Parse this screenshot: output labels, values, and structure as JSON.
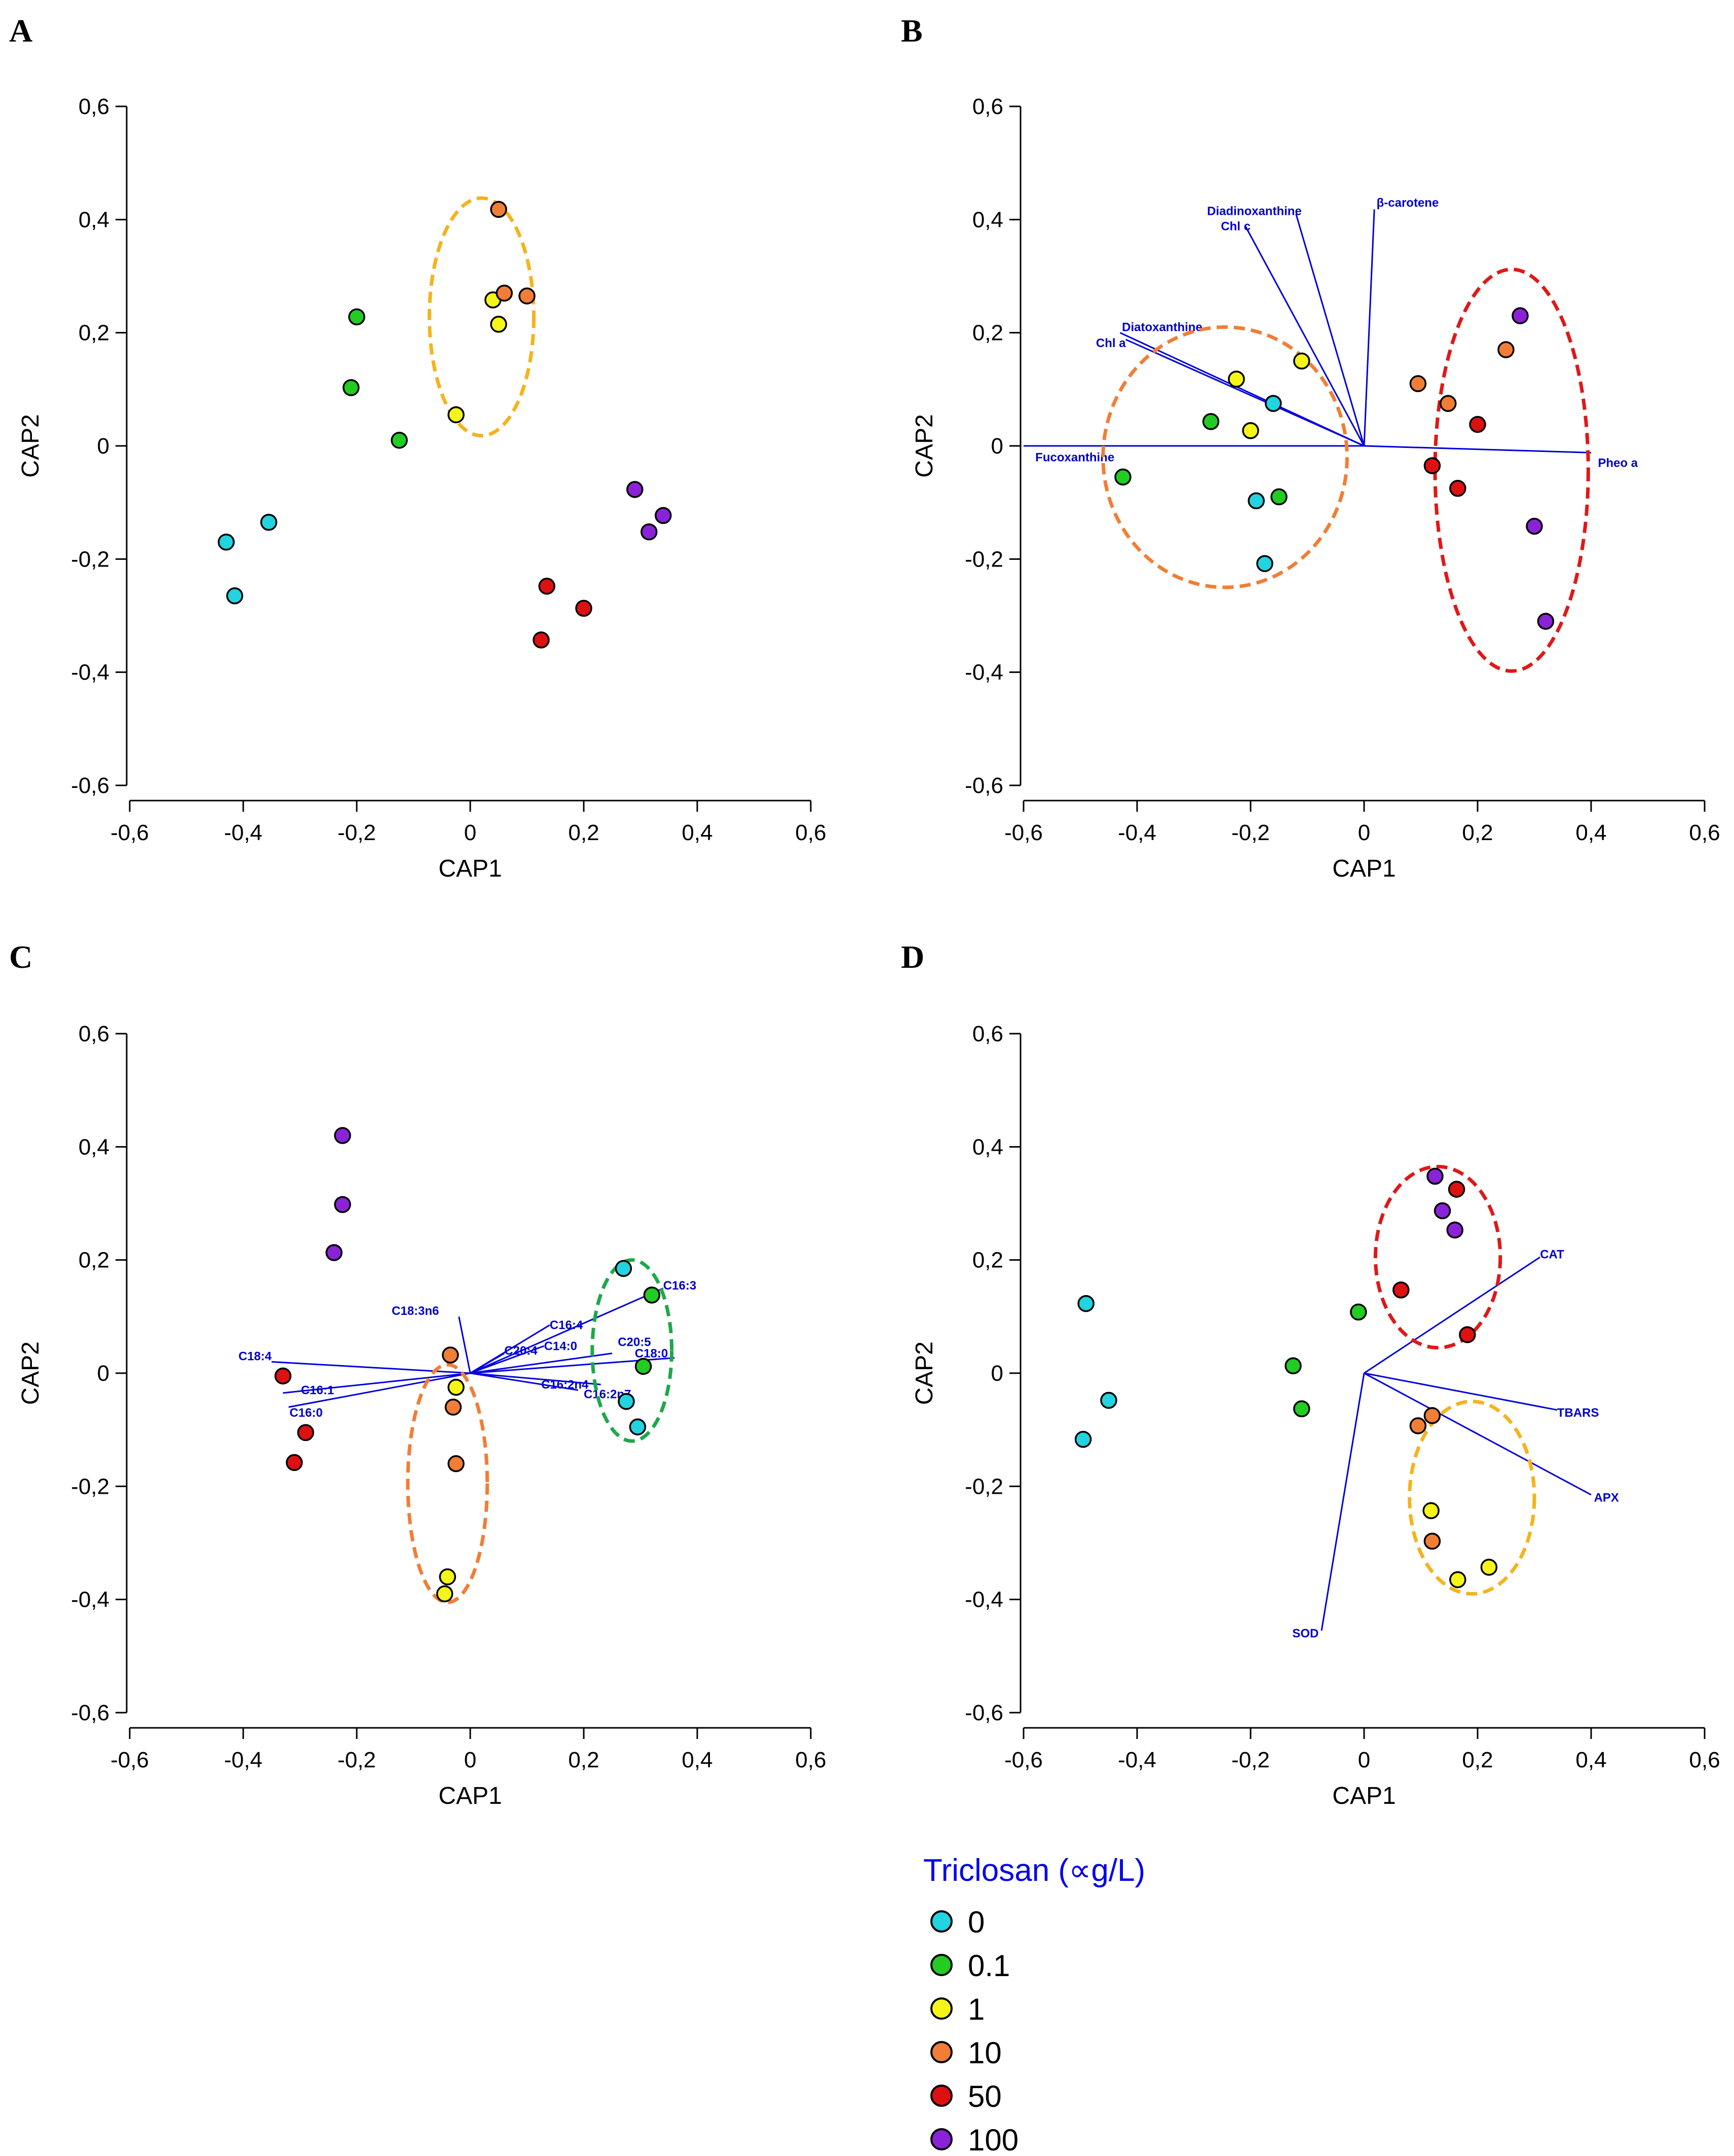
{
  "colors": {
    "t0": "#22d3e0",
    "t0_1": "#22cc22",
    "t1": "#f5f518",
    "t10": "#f07e36",
    "t50": "#dd1111",
    "t100": "#8a22d8",
    "vector": "#0000dd",
    "ellipse_orange": "#f07e36",
    "ellipse_gold": "#f5b31b",
    "ellipse_red": "#e01818",
    "ellipse_green": "#1ea84a"
  },
  "legend": {
    "title": "Triclosan (∝g/L)",
    "items": [
      {
        "label": "0",
        "color_key": "t0"
      },
      {
        "label": "0.1",
        "color_key": "t0_1"
      },
      {
        "label": "1",
        "color_key": "t1"
      },
      {
        "label": "10",
        "color_key": "t10"
      },
      {
        "label": "50",
        "color_key": "t50"
      },
      {
        "label": "100",
        "color_key": "t100"
      }
    ]
  },
  "chart_data": [
    {
      "panel": "A",
      "type": "scatter",
      "xlabel": "CAP1",
      "ylabel": "CAP2",
      "xlim": [
        -0.6,
        0.6
      ],
      "ylim": [
        -0.6,
        0.6
      ],
      "xticks": [
        "-0,6",
        "-0,4",
        "-0,2",
        "0",
        "0,2",
        "0,4",
        "0,6"
      ],
      "yticks": [
        "0,6",
        "0,4",
        "0,2",
        "0",
        "-0,2",
        "-0,4",
        "-0,6"
      ],
      "series": [
        {
          "group": "0",
          "points": [
            [
              -0.43,
              -0.17
            ],
            [
              -0.355,
              -0.135
            ],
            [
              -0.415,
              -0.265
            ]
          ]
        },
        {
          "group": "0.1",
          "points": [
            [
              -0.2,
              0.228
            ],
            [
              -0.21,
              0.103
            ],
            [
              -0.125,
              0.01
            ]
          ]
        },
        {
          "group": "1",
          "points": [
            [
              0.04,
              0.258
            ],
            [
              0.05,
              0.215
            ],
            [
              -0.025,
              0.055
            ]
          ]
        },
        {
          "group": "10",
          "points": [
            [
              0.05,
              0.418
            ],
            [
              0.06,
              0.27
            ],
            [
              0.1,
              0.265
            ]
          ]
        },
        {
          "group": "50",
          "points": [
            [
              0.135,
              -0.248
            ],
            [
              0.2,
              -0.287
            ],
            [
              0.125,
              -0.343
            ]
          ]
        },
        {
          "group": "100",
          "points": [
            [
              0.29,
              -0.077
            ],
            [
              0.34,
              -0.123
            ],
            [
              0.315,
              -0.152
            ]
          ]
        }
      ],
      "ellipses": [
        {
          "color_key": "ellipse_gold",
          "cx": 0.02,
          "cy": 0.228,
          "rx": 0.092,
          "ry": 0.21
        }
      ],
      "vectors": []
    },
    {
      "panel": "B",
      "type": "scatter",
      "xlabel": "CAP1",
      "ylabel": "CAP2",
      "xlim": [
        -0.6,
        0.6
      ],
      "ylim": [
        -0.6,
        0.6
      ],
      "xticks": [
        "-0,6",
        "-0,4",
        "-0,2",
        "0",
        "0,2",
        "0,4",
        "0,6"
      ],
      "yticks": [
        "0,6",
        "0,4",
        "0,2",
        "0",
        "-0,2",
        "-0,4",
        "-0,6"
      ],
      "series": [
        {
          "group": "0",
          "points": [
            [
              -0.16,
              0.075
            ],
            [
              -0.19,
              -0.097
            ],
            [
              -0.175,
              -0.208
            ]
          ]
        },
        {
          "group": "0.1",
          "points": [
            [
              -0.27,
              0.043
            ],
            [
              -0.15,
              -0.09
            ],
            [
              -0.425,
              -0.055
            ]
          ]
        },
        {
          "group": "1",
          "points": [
            [
              -0.225,
              0.118
            ],
            [
              -0.11,
              0.15
            ],
            [
              -0.2,
              0.027
            ]
          ]
        },
        {
          "group": "10",
          "points": [
            [
              0.25,
              0.17
            ],
            [
              0.095,
              0.11
            ],
            [
              0.148,
              0.075
            ]
          ]
        },
        {
          "group": "50",
          "points": [
            [
              0.2,
              0.038
            ],
            [
              0.12,
              -0.035
            ],
            [
              0.165,
              -0.075
            ]
          ]
        },
        {
          "group": "100",
          "points": [
            [
              0.275,
              0.23
            ],
            [
              0.3,
              -0.142
            ],
            [
              0.32,
              -0.31
            ]
          ]
        }
      ],
      "ellipses": [
        {
          "color_key": "ellipse_orange",
          "cx": -0.245,
          "cy": -0.02,
          "rx": 0.215,
          "ry": 0.23
        },
        {
          "color_key": "ellipse_red",
          "cx": 0.26,
          "cy": -0.043,
          "rx": 0.135,
          "ry": 0.355
        }
      ],
      "vectors": [
        {
          "label": "β-carotene",
          "x": 0.018,
          "y": 0.418,
          "lx": 0.022,
          "ly": 0.43,
          "anchor": "start"
        },
        {
          "label": "Diadinoxanthine",
          "x": -0.12,
          "y": 0.41,
          "lx": -0.11,
          "ly": 0.415,
          "anchor": "end"
        },
        {
          "label": "Chl c",
          "x": -0.21,
          "y": 0.39,
          "lx": -0.2,
          "ly": 0.388,
          "anchor": "end"
        },
        {
          "label": "Diatoxanthine",
          "x": -0.43,
          "y": 0.2,
          "lx": -0.285,
          "ly": 0.21,
          "anchor": "end"
        },
        {
          "label": "Chl a",
          "x": -0.42,
          "y": 0.188,
          "lx": -0.42,
          "ly": 0.182,
          "anchor": "end"
        },
        {
          "label": "Fucoxanthine",
          "x": -0.6,
          "y": 0.0,
          "lx": -0.44,
          "ly": -0.02,
          "anchor": "end"
        },
        {
          "label": "Pheo a",
          "x": 0.4,
          "y": -0.012,
          "lx": 0.412,
          "ly": -0.03,
          "anchor": "start"
        }
      ]
    },
    {
      "panel": "C",
      "type": "scatter",
      "xlabel": "CAP1",
      "ylabel": "CAP2",
      "xlim": [
        -0.6,
        0.6
      ],
      "ylim": [
        -0.6,
        0.6
      ],
      "xticks": [
        "-0,6",
        "-0,4",
        "-0,2",
        "0",
        "0,2",
        "0,4",
        "0,6"
      ],
      "yticks": [
        "0,6",
        "0,4",
        "0,2",
        "0",
        "-0,2",
        "-0,4",
        "-0,6"
      ],
      "series": [
        {
          "group": "0",
          "points": [
            [
              0.27,
              0.185
            ],
            [
              0.275,
              -0.05
            ],
            [
              0.295,
              -0.095
            ]
          ]
        },
        {
          "group": "0.1",
          "points": [
            [
              0.32,
              0.138
            ],
            [
              0.305,
              0.012
            ]
          ]
        },
        {
          "group": "1",
          "points": [
            [
              -0.025,
              -0.025
            ],
            [
              -0.04,
              -0.36
            ],
            [
              -0.045,
              -0.39
            ]
          ]
        },
        {
          "group": "10",
          "points": [
            [
              -0.035,
              0.032
            ],
            [
              -0.03,
              -0.06
            ],
            [
              -0.025,
              -0.16
            ]
          ]
        },
        {
          "group": "50",
          "points": [
            [
              -0.33,
              -0.005
            ],
            [
              -0.29,
              -0.105
            ],
            [
              -0.31,
              -0.158
            ]
          ]
        },
        {
          "group": "100",
          "points": [
            [
              -0.225,
              0.42
            ],
            [
              -0.225,
              0.298
            ],
            [
              -0.24,
              0.213
            ]
          ]
        }
      ],
      "ellipses": [
        {
          "color_key": "ellipse_orange",
          "cx": -0.04,
          "cy": -0.195,
          "rx": 0.07,
          "ry": 0.21
        },
        {
          "color_key": "ellipse_green",
          "cx": 0.285,
          "cy": 0.04,
          "rx": 0.07,
          "ry": 0.16
        }
      ],
      "vectors": [
        {
          "label": "C18:3n6",
          "x": -0.02,
          "y": 0.1,
          "lx": -0.055,
          "ly": 0.11,
          "anchor": "end"
        },
        {
          "label": "C18:4",
          "x": -0.35,
          "y": 0.02,
          "lx": -0.35,
          "ly": 0.03,
          "anchor": "end"
        },
        {
          "label": "C16:1",
          "x": -0.33,
          "y": -0.035,
          "lx": -0.24,
          "ly": -0.03,
          "anchor": "end"
        },
        {
          "label": "C16:0",
          "x": -0.32,
          "y": -0.06,
          "lx": -0.26,
          "ly": -0.07,
          "anchor": "end"
        },
        {
          "label": "C20:4",
          "x": 0.06,
          "y": 0.035,
          "lx": 0.06,
          "ly": 0.04,
          "anchor": "start"
        },
        {
          "label": "C14:0",
          "x": 0.13,
          "y": 0.048,
          "lx": 0.13,
          "ly": 0.048,
          "anchor": "start"
        },
        {
          "label": "C16:4",
          "x": 0.14,
          "y": 0.085,
          "lx": 0.14,
          "ly": 0.085,
          "anchor": "start"
        },
        {
          "label": "C16:3",
          "x": 0.34,
          "y": 0.15,
          "lx": 0.34,
          "ly": 0.155,
          "anchor": "start"
        },
        {
          "label": "C20:5",
          "x": 0.25,
          "y": 0.035,
          "lx": 0.26,
          "ly": 0.055,
          "anchor": "start"
        },
        {
          "label": "C18:0",
          "x": 0.36,
          "y": 0.027,
          "lx": 0.29,
          "ly": 0.035,
          "anchor": "start"
        },
        {
          "label": "C16:2n4",
          "x": 0.23,
          "y": -0.02,
          "lx": 0.125,
          "ly": -0.02,
          "anchor": "start"
        },
        {
          "label": "C16:2n7",
          "x": 0.19,
          "y": -0.03,
          "lx": 0.2,
          "ly": -0.037,
          "anchor": "start"
        }
      ]
    },
    {
      "panel": "D",
      "type": "scatter",
      "xlabel": "CAP1",
      "ylabel": "CAP2",
      "xlim": [
        -0.6,
        0.6
      ],
      "ylim": [
        -0.6,
        0.6
      ],
      "xticks": [
        "-0,6",
        "-0,4",
        "-0,2",
        "0",
        "0,2",
        "0,4",
        "0,6"
      ],
      "yticks": [
        "0,6",
        "0,4",
        "0,2",
        "0",
        "-0,2",
        "-0,4",
        "-0,6"
      ],
      "series": [
        {
          "group": "0",
          "points": [
            [
              -0.49,
              0.123
            ],
            [
              -0.45,
              -0.048
            ],
            [
              -0.495,
              -0.117
            ]
          ]
        },
        {
          "group": "0.1",
          "points": [
            [
              -0.01,
              0.108
            ],
            [
              -0.125,
              0.013
            ],
            [
              -0.11,
              -0.063
            ]
          ]
        },
        {
          "group": "1",
          "points": [
            [
              0.118,
              -0.243
            ],
            [
              0.22,
              -0.343
            ],
            [
              0.165,
              -0.365
            ]
          ]
        },
        {
          "group": "10",
          "points": [
            [
              0.12,
              -0.075
            ],
            [
              0.095,
              -0.093
            ],
            [
              0.12,
              -0.297
            ]
          ]
        },
        {
          "group": "50",
          "points": [
            [
              0.163,
              0.325
            ],
            [
              0.065,
              0.147
            ],
            [
              0.182,
              0.068
            ]
          ]
        },
        {
          "group": "100",
          "points": [
            [
              0.125,
              0.348
            ],
            [
              0.138,
              0.287
            ],
            [
              0.16,
              0.253
            ]
          ]
        }
      ],
      "ellipses": [
        {
          "color_key": "ellipse_red",
          "cx": 0.13,
          "cy": 0.205,
          "rx": 0.11,
          "ry": 0.16
        },
        {
          "color_key": "ellipse_gold",
          "cx": 0.19,
          "cy": -0.22,
          "rx": 0.11,
          "ry": 0.17
        }
      ],
      "vectors": [
        {
          "label": "CAT",
          "x": 0.31,
          "y": 0.205,
          "lx": 0.31,
          "ly": 0.21,
          "anchor": "start"
        },
        {
          "label": "TBARS",
          "x": 0.34,
          "y": -0.065,
          "lx": 0.34,
          "ly": -0.07,
          "anchor": "start"
        },
        {
          "label": "APX",
          "x": 0.4,
          "y": -0.215,
          "lx": 0.405,
          "ly": -0.22,
          "anchor": "start"
        },
        {
          "label": "SOD",
          "x": -0.075,
          "y": -0.455,
          "lx": -0.08,
          "ly": -0.46,
          "anchor": "end"
        }
      ]
    }
  ]
}
